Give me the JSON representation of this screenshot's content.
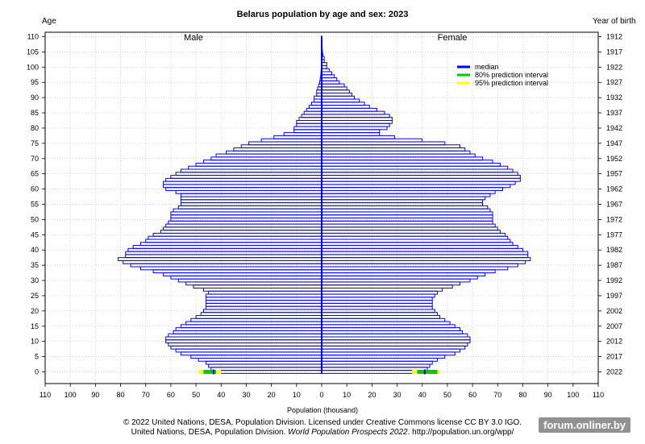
{
  "chart_data": {
    "type": "population_pyramid",
    "title": "Belarus population by age and sex: 2023",
    "y_left_label": "Age",
    "y_right_label": "Year of birth",
    "xlabel": "Population (thousand)",
    "male_label": "Male",
    "female_label": "Female",
    "x_ticks": [
      "110",
      "100",
      "90",
      "80",
      "70",
      "60",
      "50",
      "40",
      "30",
      "20",
      "10",
      "0",
      "10",
      "20",
      "30",
      "40",
      "50",
      "60",
      "70",
      "80",
      "90",
      "100",
      "110"
    ],
    "x_range_each_side": [
      0,
      110
    ],
    "age_ticks": [
      0,
      5,
      10,
      15,
      20,
      25,
      30,
      35,
      40,
      45,
      50,
      55,
      60,
      65,
      70,
      75,
      80,
      85,
      90,
      95,
      100,
      105,
      110
    ],
    "birth_year_ticks": [
      "2022",
      "2017",
      "2012",
      "2007",
      "2002",
      "1997",
      "1992",
      "1987",
      "1982",
      "1977",
      "1972",
      "1967",
      "1962",
      "1957",
      "1952",
      "1947",
      "1942",
      "1937",
      "1932",
      "1927",
      "1922",
      "1917",
      "1912"
    ],
    "legend": [
      {
        "label": "median",
        "color": "#0000ff"
      },
      {
        "label": "80% prediction interval",
        "color": "#00cc00"
      },
      {
        "label": "95% prediction interval",
        "color": "#ffff00"
      }
    ],
    "bar_color": "#0000ff",
    "ages": [
      0,
      1,
      2,
      3,
      4,
      5,
      6,
      7,
      8,
      9,
      10,
      11,
      12,
      13,
      14,
      15,
      16,
      17,
      18,
      19,
      20,
      21,
      22,
      23,
      24,
      25,
      26,
      27,
      28,
      29,
      30,
      31,
      32,
      33,
      34,
      35,
      36,
      37,
      38,
      39,
      40,
      41,
      42,
      43,
      44,
      45,
      46,
      47,
      48,
      49,
      50,
      51,
      52,
      53,
      54,
      55,
      56,
      57,
      58,
      59,
      60,
      61,
      62,
      63,
      64,
      65,
      66,
      67,
      68,
      69,
      70,
      71,
      72,
      73,
      74,
      75,
      76,
      77,
      78,
      79,
      80,
      81,
      82,
      83,
      84,
      85,
      86,
      87,
      88,
      89,
      90,
      91,
      92,
      93,
      94,
      95,
      96,
      97,
      98,
      99,
      100,
      101,
      102,
      103,
      104,
      105,
      106,
      107,
      108,
      109,
      110
    ],
    "male": [
      43,
      44,
      45,
      46,
      49,
      52,
      56,
      58,
      60,
      61,
      62,
      62,
      61,
      59,
      58,
      56,
      54,
      52,
      50,
      48,
      47,
      46,
      46,
      46,
      46,
      46,
      45,
      47,
      51,
      54,
      57,
      60,
      63,
      67,
      72,
      76,
      79,
      81,
      78,
      78,
      77,
      75,
      72,
      70,
      69,
      67,
      64,
      63,
      62,
      61,
      60,
      60,
      60,
      59,
      57,
      56,
      56,
      56,
      56,
      58,
      62,
      63,
      63,
      62,
      60,
      58,
      56,
      53,
      50,
      47,
      44,
      42,
      38,
      35,
      32,
      29,
      24,
      19,
      15,
      11,
      11,
      10,
      10,
      9,
      8,
      7,
      6,
      5,
      4,
      3,
      3,
      2,
      2,
      1.6,
      1.2,
      0.8,
      0.6,
      0.4,
      0.3,
      0.2,
      0.1,
      0.1,
      0,
      0,
      0,
      0,
      0,
      0,
      0,
      0,
      0
    ],
    "female": [
      41,
      42,
      43,
      44,
      46,
      49,
      53,
      55,
      57,
      58,
      59,
      59,
      58,
      56,
      55,
      53,
      51,
      49,
      47,
      46,
      45,
      44,
      44,
      44,
      44,
      45,
      46,
      48,
      52,
      55,
      59,
      62,
      65,
      69,
      74,
      78,
      81,
      83,
      82,
      82,
      80,
      78,
      76,
      75,
      74,
      73,
      71,
      70,
      69,
      68,
      68,
      68,
      68,
      67,
      66,
      64,
      64,
      65,
      67,
      69,
      72,
      75,
      77,
      79,
      79,
      78,
      76,
      74,
      71,
      68,
      64,
      61,
      59,
      57,
      55,
      49,
      40,
      29,
      23,
      23,
      26,
      27,
      28,
      28,
      27,
      25,
      22,
      19,
      17,
      15,
      13,
      12,
      11,
      10,
      9,
      7,
      6,
      5,
      4,
      3,
      2,
      2,
      1,
      1,
      0.5,
      0.3,
      0.2,
      0.1,
      0.1,
      0,
      0
    ],
    "age0_intervals": {
      "male": {
        "p95": [
          40,
          49
        ],
        "p80": [
          42,
          47
        ]
      },
      "female": {
        "p95": [
          36,
          47
        ],
        "p80": [
          38,
          46
        ]
      }
    }
  },
  "footer": {
    "line1": "© 2022 United Nations, DESA, Population Division. Licensed under Creative Commons license CC BY 3.0 IGO.",
    "line2_prefix": "United Nations, DESA, Population Division. ",
    "line2_italic": "World Population Prospects 2022",
    "line2_suffix": ". http://population.un.org/wpp/"
  },
  "watermark": "forum.onliner.by"
}
